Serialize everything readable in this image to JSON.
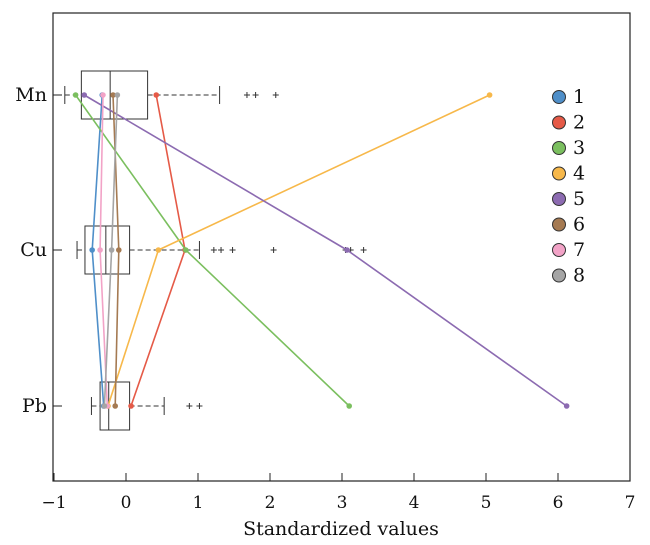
{
  "chart_data": {
    "type": "boxplot",
    "title": "",
    "xlabel": "Standardized values",
    "ylabel": "",
    "xlim": [
      -1,
      7
    ],
    "x_ticks": [
      -1,
      0,
      1,
      2,
      3,
      4,
      5,
      6,
      7
    ],
    "x_tick_labels": [
      "−1",
      "0",
      "1",
      "2",
      "3",
      "4",
      "5",
      "6",
      "7"
    ],
    "categories": [
      "Mn",
      "Cu",
      "Pb"
    ],
    "grid": false,
    "legend_position": "right",
    "boxes": [
      {
        "category": "Mn",
        "whisker_low": -0.85,
        "q1": -0.62,
        "median": -0.22,
        "q3": 0.3,
        "whisker_high": 1.3,
        "outliers": [
          1.68,
          1.8,
          2.08
        ]
      },
      {
        "category": "Cu",
        "whisker_low": -0.68,
        "q1": -0.57,
        "median": -0.28,
        "q3": 0.05,
        "whisker_high": 1.02,
        "outliers": [
          1.22,
          1.32,
          1.48,
          2.05,
          3.05,
          3.12,
          3.3
        ]
      },
      {
        "category": "Pb",
        "whisker_low": -0.48,
        "q1": -0.36,
        "median": -0.24,
        "q3": 0.05,
        "whisker_high": 0.53,
        "outliers": [
          0.88,
          1.02
        ]
      }
    ],
    "series": [
      {
        "name": "1",
        "color": "#4f8fc9",
        "values": [
          -0.33,
          -0.47,
          -0.31
        ]
      },
      {
        "name": "2",
        "color": "#e55a47",
        "values": [
          0.42,
          0.82,
          0.07
        ]
      },
      {
        "name": "3",
        "color": "#7bbf5f",
        "values": [
          -0.7,
          0.83,
          3.1
        ]
      },
      {
        "name": "4",
        "color": "#f7b84a",
        "values": [
          5.05,
          0.45,
          -0.25
        ]
      },
      {
        "name": "5",
        "color": "#8c6bb1",
        "values": [
          -0.58,
          3.07,
          6.12
        ]
      },
      {
        "name": "6",
        "color": "#a57a52",
        "values": [
          -0.18,
          -0.1,
          -0.15
        ]
      },
      {
        "name": "7",
        "color": "#f2a3c7",
        "values": [
          -0.32,
          -0.36,
          -0.26
        ]
      },
      {
        "name": "8",
        "color": "#a5a5a5",
        "values": [
          -0.12,
          -0.2,
          -0.3
        ]
      }
    ]
  }
}
